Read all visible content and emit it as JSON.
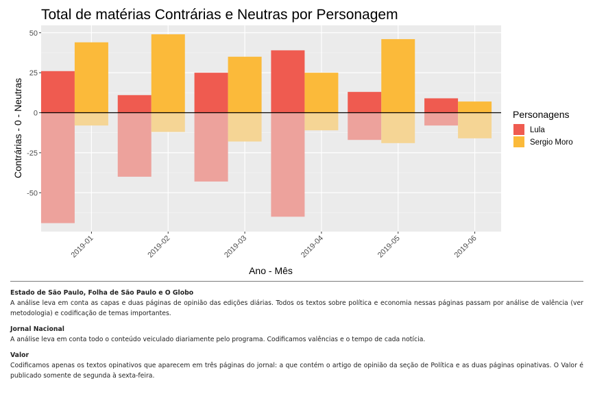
{
  "chart_data": {
    "type": "bar",
    "title": "Total de matérias Contrárias e Neutras por Personagem",
    "xlabel": "Ano - Mês",
    "ylabel": "Contrárias - 0 - Neutras",
    "categories": [
      "2019-01",
      "2019-02",
      "2019-03",
      "2019-04",
      "2019-05",
      "2019-06"
    ],
    "yticks": [
      50,
      25,
      0,
      -25,
      -50
    ],
    "ylim": [
      -75,
      53
    ],
    "grid": true,
    "legend": {
      "title": "Personagens",
      "position": "right"
    },
    "series": [
      {
        "name": "Lula",
        "color": "#EF5B50",
        "neg_color": "#EDA29C",
        "neutras": [
          26,
          11,
          25,
          39,
          13,
          9
        ],
        "contrarias": [
          -69,
          -40,
          -43,
          -65,
          -17,
          -8
        ]
      },
      {
        "name": "Sergio Moro",
        "color": "#FBBA3A",
        "neg_color": "#F5D595",
        "neutras": [
          44,
          49,
          35,
          25,
          46,
          7
        ],
        "contrarias": [
          -8,
          -12,
          -18,
          -11,
          -19,
          -16
        ]
      }
    ]
  },
  "notes": [
    {
      "heading": "Estado de São Paulo, Folha de São Paulo e O Globo",
      "text": "A análise leva em conta as capas e duas páginas de opinião das edições diárias. Todos os textos sobre política e economia nessas páginas passam por análise de valência (ver metodologia) e codificação de temas importantes."
    },
    {
      "heading": "Jornal Nacional",
      "text": "A análise leva em conta todo o conteúdo veiculado diariamente pelo programa. Codificamos valências e o tempo de cada notícia."
    },
    {
      "heading": "Valor",
      "text": "Codificamos apenas os textos opinativos que aparecem em três páginas do jornal: a que contém o artigo de opinião da seção de Política e as duas páginas opinativas. O Valor é publicado somente de segunda à sexta-feira."
    }
  ]
}
